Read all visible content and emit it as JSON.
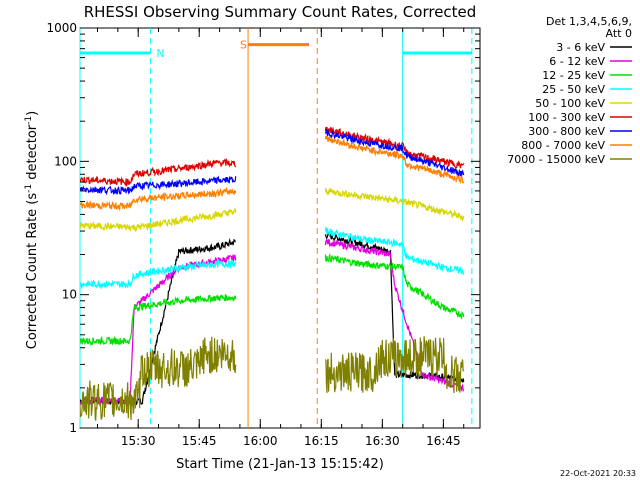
{
  "chart_data": {
    "type": "line",
    "title": "RHESSI Observing Summary Count Rates, Corrected",
    "xlabel": "Start Time (21-Jan-13 15:15:42)",
    "ylabel_main": "Corrected Count Rate (s",
    "ylabel_exp1": "-1",
    "ylabel_mid": " detector",
    "ylabel_exp2": "-1",
    "ylabel_end": ")",
    "y_scale": "log",
    "ylim": [
      1,
      1000
    ],
    "xlim": [
      "15:15:42",
      "16:54:00"
    ],
    "y_ticks": [
      {
        "label": "1000",
        "value": 1000
      },
      {
        "label": "100",
        "value": 100
      },
      {
        "label": "10",
        "value": 10
      },
      {
        "label": "1",
        "value": 1
      }
    ],
    "x_ticks": [
      {
        "label": "15:30",
        "value": "15:30"
      },
      {
        "label": "15:45",
        "value": "15:45"
      },
      {
        "label": "16:00",
        "value": "16:00"
      },
      {
        "label": "16:15",
        "value": "16:15"
      },
      {
        "label": "16:30",
        "value": "16:30"
      },
      {
        "label": "16:45",
        "value": "16:45"
      }
    ],
    "legend_header": [
      "Det 1,3,4,5,6,9,",
      "Att 0"
    ],
    "legend_placement": "right",
    "series": [
      {
        "name": "3 - 6 keV",
        "color": "#000000",
        "segments": [
          {
            "x": [
              "15:15:42",
              "15:30",
              "15:31",
              "15:40",
              "15:50",
              "15:54"
            ],
            "y": [
              1.6,
              1.6,
              1.6,
              21,
              23,
              25
            ]
          },
          {
            "x": [
              "16:16",
              "16:25",
              "16:32",
              "16:33",
              "16:40",
              "16:50"
            ],
            "y": [
              28,
              24,
              21,
              2.5,
              2.5,
              2.3
            ]
          }
        ]
      },
      {
        "name": "6 - 12 keV",
        "color": "#e000e0",
        "segments": [
          {
            "x": [
              "15:15:42",
              "15:28",
              "15:29",
              "15:40",
              "15:50",
              "15:54"
            ],
            "y": [
              1.6,
              1.6,
              8,
              16,
              18,
              19
            ]
          },
          {
            "x": [
              "16:16",
              "16:25",
              "16:32",
              "16:33",
              "16:40",
              "16:50"
            ],
            "y": [
              25,
              22,
              20,
              12,
              2.5,
              2
            ]
          }
        ]
      },
      {
        "name": "12 - 25 keV",
        "color": "#00e000",
        "segments": [
          {
            "x": [
              "15:15:42",
              "15:28",
              "15:29",
              "15:40",
              "15:50",
              "15:54"
            ],
            "y": [
              4.5,
              4.5,
              8,
              9,
              9.5,
              9.5
            ]
          },
          {
            "x": [
              "16:16",
              "16:25",
              "16:35",
              "16:36",
              "16:45",
              "16:50"
            ],
            "y": [
              19,
              17,
              16,
              12,
              8,
              7
            ]
          }
        ]
      },
      {
        "name": "25 - 50 keV",
        "color": "#00ffff",
        "segments": [
          {
            "x": [
              "15:15:42",
              "15:28",
              "15:29",
              "15:40",
              "15:50",
              "15:54"
            ],
            "y": [
              12,
              12,
              14,
              16,
              17,
              17
            ]
          },
          {
            "x": [
              "16:16",
              "16:25",
              "16:35",
              "16:36",
              "16:45",
              "16:50"
            ],
            "y": [
              30,
              26,
              24,
              19,
              16,
              15
            ]
          }
        ]
      },
      {
        "name": "50 - 100 keV",
        "color": "#d8d800",
        "segments": [
          {
            "x": [
              "15:15:42",
              "15:30",
              "15:40",
              "15:50",
              "15:54"
            ],
            "y": [
              33,
              32,
              36,
              40,
              42
            ]
          },
          {
            "x": [
              "16:16",
              "16:25",
              "16:35",
              "16:45",
              "16:50"
            ],
            "y": [
              60,
              55,
              50,
              42,
              38
            ]
          }
        ]
      },
      {
        "name": "100 - 300 keV",
        "color": "#e00000",
        "segments": [
          {
            "x": [
              "15:15:42",
              "15:28",
              "15:29",
              "15:40",
              "15:50",
              "15:54"
            ],
            "y": [
              73,
              70,
              80,
              88,
              98,
              96
            ]
          },
          {
            "x": [
              "16:16",
              "16:25",
              "16:35",
              "16:36",
              "16:45",
              "16:50"
            ],
            "y": [
              175,
              150,
              130,
              115,
              100,
              92
            ]
          }
        ]
      },
      {
        "name": "300 - 800 keV",
        "color": "#0000ff",
        "segments": [
          {
            "x": [
              "15:15:42",
              "15:28",
              "15:29",
              "15:40",
              "15:50",
              "15:54"
            ],
            "y": [
              62,
              60,
              65,
              68,
              72,
              73
            ]
          },
          {
            "x": [
              "16:16",
              "16:25",
              "16:35",
              "16:36",
              "16:45",
              "16:50"
            ],
            "y": [
              165,
              140,
              125,
              110,
              90,
              80
            ]
          }
        ]
      },
      {
        "name": "800 - 7000 keV",
        "color": "#ff8000",
        "segments": [
          {
            "x": [
              "15:15:42",
              "15:28",
              "15:29",
              "15:40",
              "15:50",
              "15:54"
            ],
            "y": [
              47,
              46,
              52,
              55,
              58,
              60
            ]
          },
          {
            "x": [
              "16:16",
              "16:25",
              "16:35",
              "16:36",
              "16:45",
              "16:50"
            ],
            "y": [
              150,
              125,
              110,
              95,
              80,
              72
            ]
          }
        ]
      },
      {
        "name": "7000 - 15000 keV",
        "color": "#808000",
        "segments": [
          {
            "x": [
              "15:15:42",
              "15:30",
              "15:31",
              "15:45",
              "15:46",
              "15:54"
            ],
            "y": [
              1.6,
              1.6,
              2.8,
              2.8,
              3.5,
              3.6
            ]
          },
          {
            "x": [
              "16:16",
              "16:28",
              "16:29",
              "16:45",
              "16:46",
              "16:50"
            ],
            "y": [
              2.6,
              2.6,
              3.3,
              3.5,
              2.5,
              2.5
            ]
          }
        ]
      }
    ],
    "annotations": [
      {
        "label": "N",
        "color": "#00ffff",
        "x_start": "15:15:42",
        "x_end": "15:33",
        "y": 650,
        "solid_line": "15:15:42",
        "dashed_line": "15:33"
      },
      {
        "label": "S",
        "color": "#ff8000",
        "x_start": "15:57",
        "x_end": "16:12",
        "y": 750,
        "solid_line": "15:57",
        "dashed_line": "16:14"
      },
      {
        "label": "",
        "color": "#00ffff",
        "x_start": "16:35",
        "x_end": "16:52",
        "y": 650,
        "solid_line": "16:35",
        "dashed_line": "16:52"
      }
    ],
    "footer_timestamp": "22-Oct-2021 20:33"
  }
}
